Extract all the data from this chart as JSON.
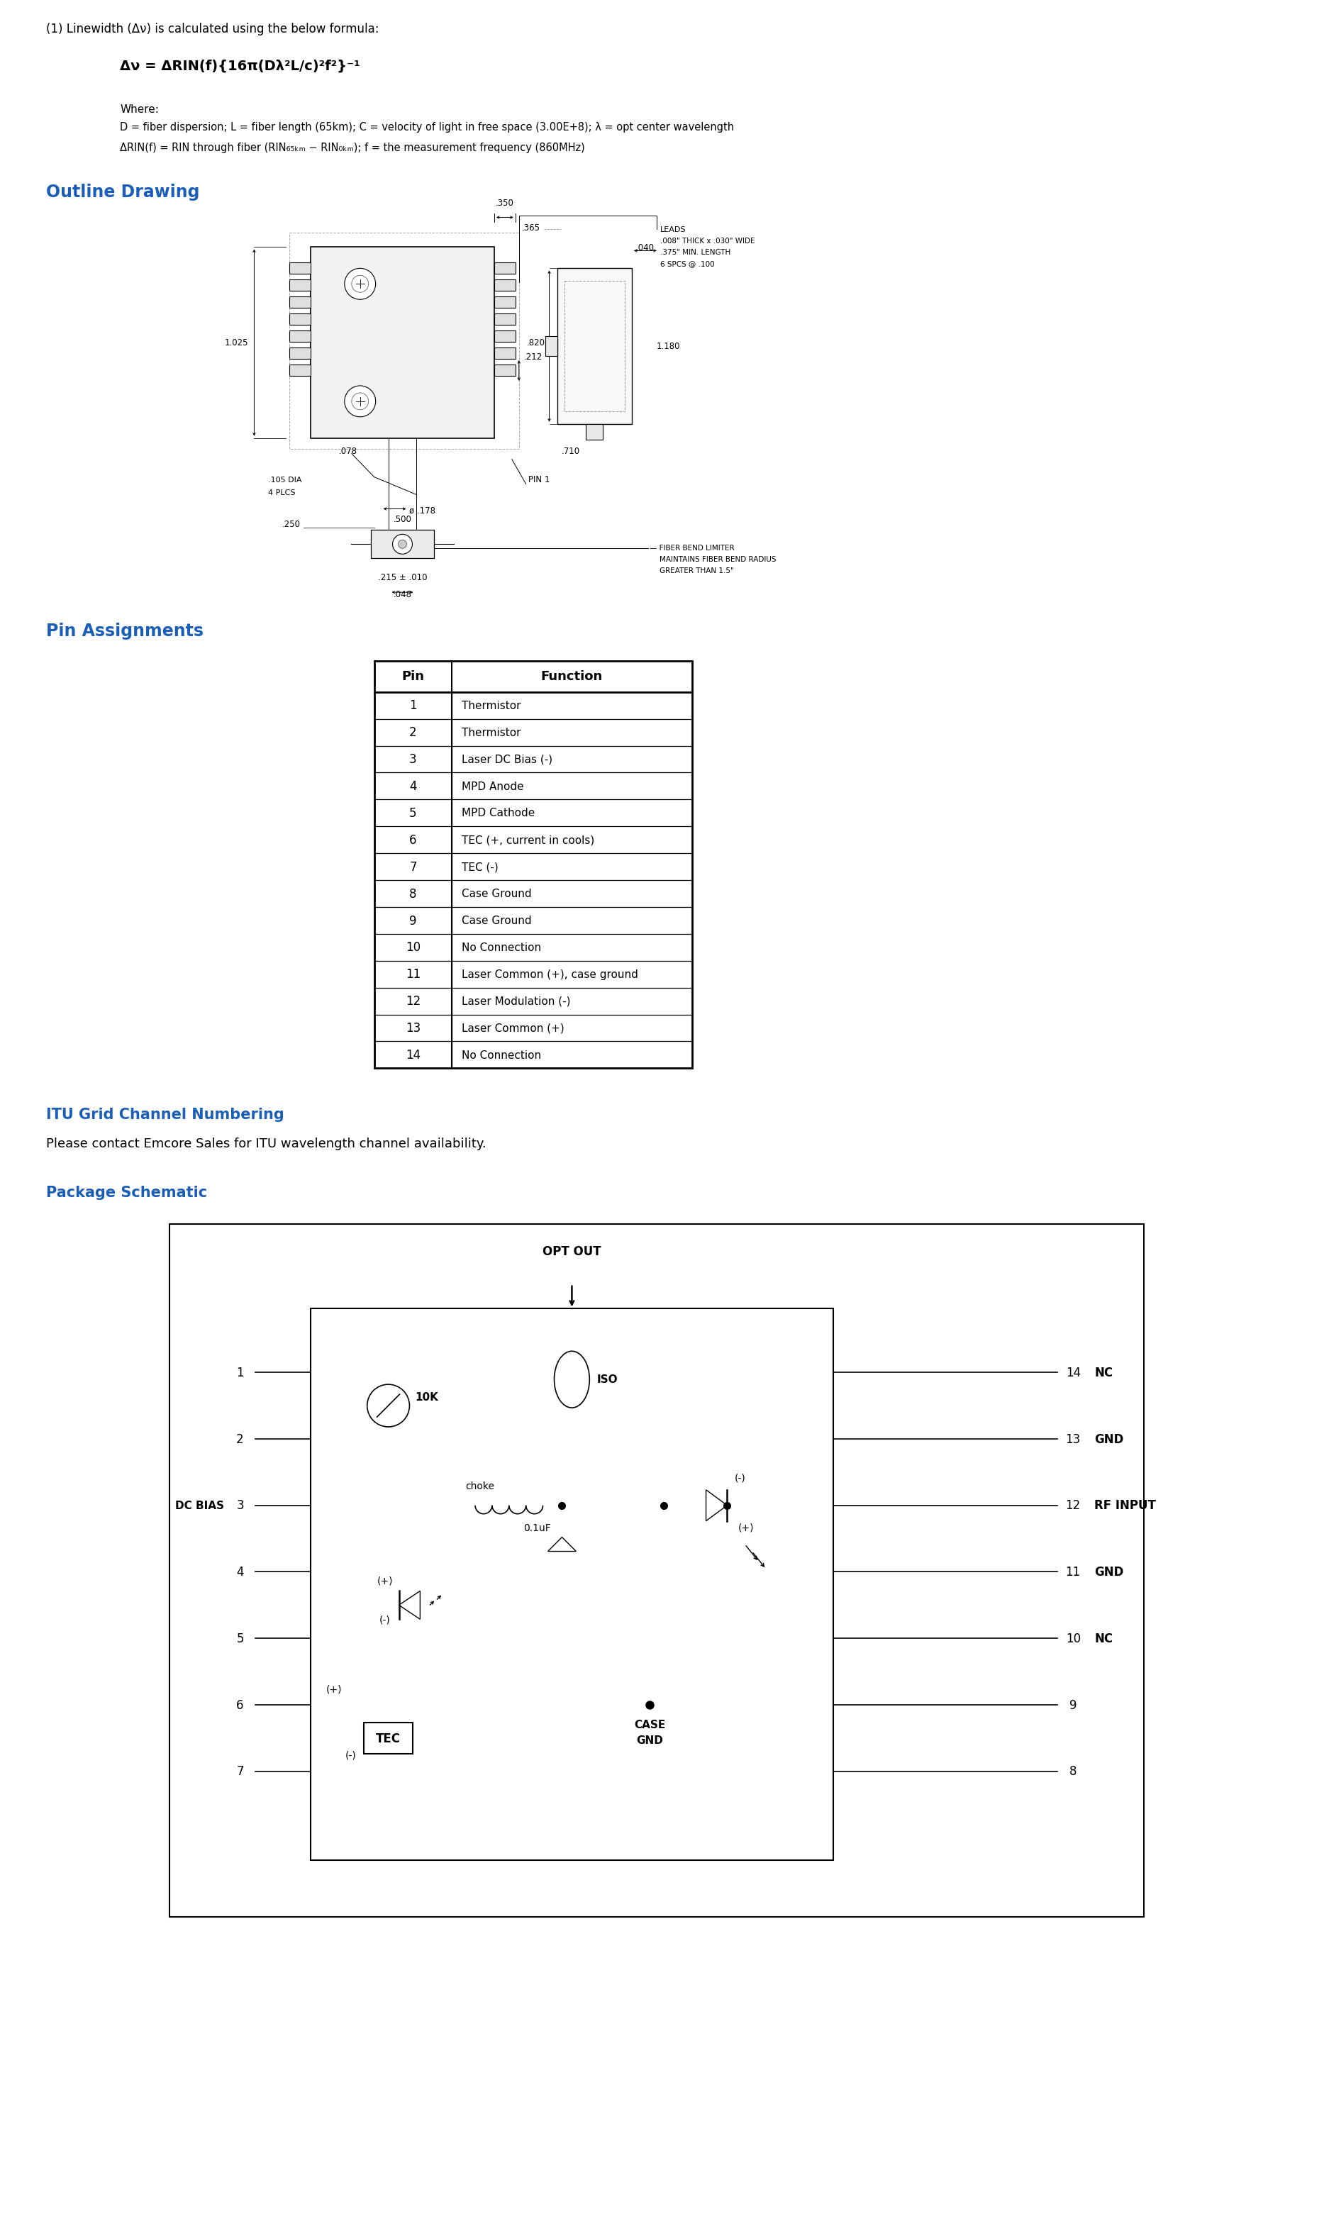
{
  "bg_color": "#ffffff",
  "text_color": "#000000",
  "blue_color": "#1a5eb8",
  "pin_table": {
    "pins": [
      1,
      2,
      3,
      4,
      5,
      6,
      7,
      8,
      9,
      10,
      11,
      12,
      13,
      14
    ],
    "functions": [
      "Thermistor",
      "Thermistor",
      "Laser DC Bias (-)",
      "MPD Anode",
      "MPD Cathode",
      "TEC (+, current in cools)",
      "TEC (-)",
      "Case Ground",
      "Case Ground",
      "No Connection",
      "Laser Common (+), case ground",
      "Laser Modulation (-)",
      "Laser Common (+)",
      "No Connection"
    ]
  },
  "formula_note": "(1) Linewidth (Δν) is calculated using the below formula:",
  "formula": "Δν = ΔRIN(f){16π(Dλ²L/c)²f²}⁻¹",
  "where_text": "Where:",
  "def1": "D = fiber dispersion; L = fiber length (65km); C = velocity of light in free space (3.00E+8); λ = opt center wavelength",
  "def2": "ΔRIN(f) = RIN through fiber (RIN₆₅ₖₘ − RIN₀ₖₘ); f = the measurement frequency (860MHz)",
  "outline_heading": "Outline Drawing",
  "pin_heading": "Pin Assignments",
  "itu_heading": "ITU Grid Channel Numbering",
  "itu_body": "Please contact Emcore Sales for ITU wavelength channel availability.",
  "pkg_heading": "Package Schematic"
}
